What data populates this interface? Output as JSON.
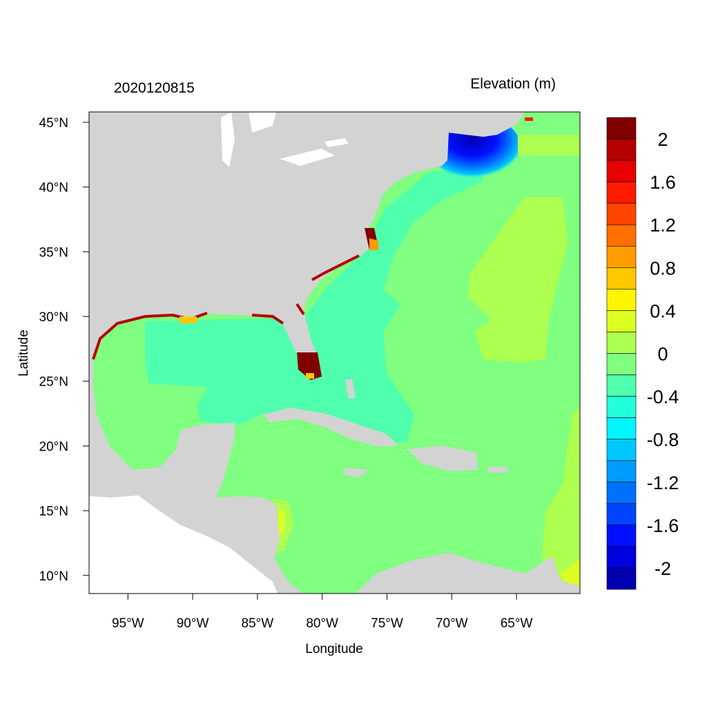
{
  "chart_data": {
    "type": "heatmap",
    "title_left": "2020120815",
    "title_right": "Elevation (m)",
    "xlabel": "Longitude",
    "ylabel": "Latitude",
    "xlim": [
      -98,
      -60.1
    ],
    "ylim": [
      8.6,
      45.8
    ],
    "x_ticks": [
      {
        "value": -95,
        "label": "95°W"
      },
      {
        "value": -90,
        "label": "90°W"
      },
      {
        "value": -85,
        "label": "85°W"
      },
      {
        "value": -80,
        "label": "80°W"
      },
      {
        "value": -75,
        "label": "75°W"
      },
      {
        "value": -70,
        "label": "70°W"
      },
      {
        "value": -65,
        "label": "65°W"
      }
    ],
    "y_ticks": [
      {
        "value": 45,
        "label": "45°N"
      },
      {
        "value": 40,
        "label": "40°N"
      },
      {
        "value": 35,
        "label": "35°N"
      },
      {
        "value": 30,
        "label": "30°N"
      },
      {
        "value": 25,
        "label": "25°N"
      },
      {
        "value": 20,
        "label": "20°N"
      },
      {
        "value": 15,
        "label": "15°N"
      },
      {
        "value": 10,
        "label": "10°N"
      }
    ],
    "colorbar": {
      "min": -2.2,
      "max": 2.2,
      "step": 0.2,
      "labels": [
        {
          "value": 2,
          "label": "2"
        },
        {
          "value": 1.6,
          "label": "1.6"
        },
        {
          "value": 1.2,
          "label": "1.2"
        },
        {
          "value": 0.8,
          "label": "0.8"
        },
        {
          "value": 0.4,
          "label": "0.4"
        },
        {
          "value": 0,
          "label": "0"
        },
        {
          "value": -0.4,
          "label": "-0.4"
        },
        {
          "value": -0.8,
          "label": "-0.8"
        },
        {
          "value": -1.2,
          "label": "-1.2"
        },
        {
          "value": -1.6,
          "label": "-1.6"
        },
        {
          "value": -2,
          "label": "-2"
        }
      ],
      "colors_top_to_bottom": [
        "#800000",
        "#b40000",
        "#e60000",
        "#ff1a00",
        "#ff4500",
        "#ff7000",
        "#ff9c00",
        "#ffc800",
        "#fff500",
        "#dcff22",
        "#adff50",
        "#80ff80",
        "#50ffad",
        "#22ffdc",
        "#00f5ff",
        "#00c8ff",
        "#009cff",
        "#0070ff",
        "#0044ff",
        "#0010ff",
        "#0000e0",
        "#0000b0"
      ]
    },
    "colors": {
      "land": "#d3d3d3",
      "no_data": "#ffffff",
      "frame": "#000000"
    }
  }
}
